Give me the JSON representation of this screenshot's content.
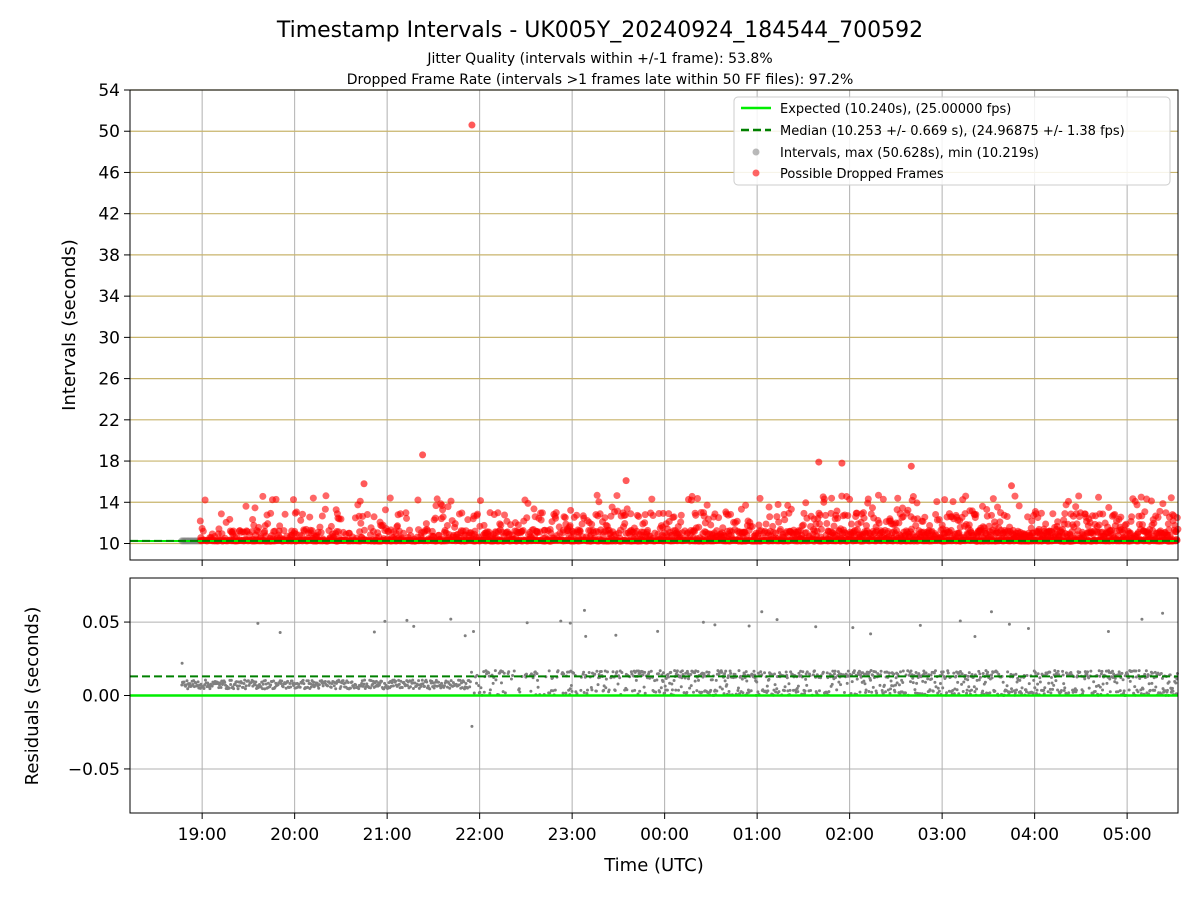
{
  "title": "Timestamp Intervals - UK005Y_20240924_184544_700592",
  "subtitle_1": "Jitter Quality (intervals within +/-1 frame): 53.8%",
  "subtitle_2": "Dropped Frame Rate (intervals >1 frames late within 50 FF files): 97.2%",
  "colors": {
    "expected": "#00ee00",
    "median": "#008000",
    "intervals": "#808080",
    "dropped": "#ff0000",
    "hgrid": "#c8b46c",
    "vgrid": "#b0b0b0"
  },
  "chart_data": [
    {
      "type": "scatter",
      "ylabel": "Intervals (seconds)",
      "ylim": [
        8.4,
        54
      ],
      "y_ticks": [
        "10",
        "14",
        "18",
        "22",
        "26",
        "30",
        "34",
        "38",
        "42",
        "46",
        "50",
        "54"
      ],
      "x_tick_labels": [
        "19:00",
        "20:00",
        "21:00",
        "22:00",
        "23:00",
        "00:00",
        "01:00",
        "02:00",
        "03:00",
        "04:00",
        "05:00"
      ],
      "x_tick_hours": [
        19,
        20,
        21,
        22,
        23,
        24,
        25,
        26,
        27,
        28,
        29
      ],
      "xlim_hours": [
        18.22,
        29.55
      ],
      "grid": true,
      "legend_position": "top-right",
      "legend": [
        "Expected (10.240s), (25.00000 fps)",
        "Median (10.253 +/- 0.669 s), (24.96875 +/- 1.38 fps)",
        "Intervals, max (50.628s), min (10.219s)",
        "Possible Dropped Frames"
      ],
      "expected_interval": 10.24,
      "median_interval": 10.253,
      "intervals_max": 50.628,
      "intervals_min": 10.219,
      "dropped_frames_start_hour": 18.98,
      "notable_points": [
        {
          "x": "21:55",
          "y": 50.6
        },
        {
          "x": "21:23",
          "y": 18.6
        },
        {
          "x": "01:40",
          "y": 17.9
        },
        {
          "x": "01:55",
          "y": 17.8
        },
        {
          "x": "02:40",
          "y": 17.5
        },
        {
          "x": "23:35",
          "y": 16.1
        },
        {
          "x": "20:45",
          "y": 15.8
        },
        {
          "x": "03:45",
          "y": 15.6
        }
      ]
    },
    {
      "type": "scatter",
      "xlabel": "Time (UTC)",
      "ylabel": "Residuals (seconds)",
      "ylim": [
        -0.08,
        0.08
      ],
      "y_ticks": [
        "0.05",
        "0.00",
        "−0.05"
      ],
      "y_tick_values": [
        0.05,
        0.0,
        -0.05
      ],
      "x_tick_labels": [
        "19:00",
        "20:00",
        "21:00",
        "22:00",
        "23:00",
        "00:00",
        "01:00",
        "02:00",
        "03:00",
        "04:00",
        "05:00"
      ],
      "x_tick_hours": [
        19,
        20,
        21,
        22,
        23,
        24,
        25,
        26,
        27,
        28,
        29
      ],
      "xlim_hours": [
        18.22,
        29.55
      ],
      "expected_residual": 0.0,
      "median_residual": 0.013,
      "notable_points": [
        {
          "x": "18:47",
          "y": 0.022
        },
        {
          "x": "21:55",
          "y": -0.021
        },
        {
          "x": "23:08",
          "y": 0.058
        },
        {
          "x": "01:03",
          "y": 0.057
        },
        {
          "x": "03:32",
          "y": 0.057
        },
        {
          "x": "05:23",
          "y": 0.056
        }
      ]
    }
  ]
}
